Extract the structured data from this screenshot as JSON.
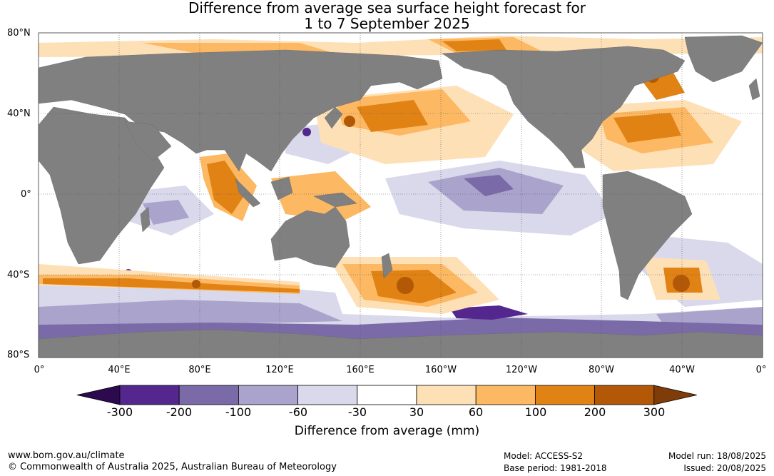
{
  "title": {
    "line1": "Difference from average sea surface height forecast for",
    "line2": "1 to 7 September 2025"
  },
  "map": {
    "lat_labels": [
      "80°N",
      "40°N",
      "0°",
      "40°S",
      "80°S"
    ],
    "lon_labels": [
      "0°",
      "40°E",
      "80°E",
      "120°E",
      "160°E",
      "160°W",
      "120°W",
      "80°W",
      "40°W",
      "0°"
    ],
    "land_color": "#808080",
    "ocean_color": "#ffffff"
  },
  "colorbar": {
    "title": "Difference from average (mm)",
    "ticks": [
      "-300",
      "-200",
      "-100",
      "-60",
      "-30",
      "30",
      "60",
      "100",
      "200",
      "300"
    ],
    "colors": [
      "#2d0a4e",
      "#54278f",
      "#7b6aa8",
      "#aaa3cc",
      "#d9d9eb",
      "#ffffff",
      "#fee0b6",
      "#fdb863",
      "#e08214",
      "#b35806",
      "#7f3b08"
    ]
  },
  "footer": {
    "url": "www.bom.gov.au/climate",
    "copyright": "© Commonwealth of Australia 2025, Australian Bureau of Meteorology",
    "model": "Model: ACCESS-S2",
    "base_period": "Base period: 1981-2018",
    "model_run": "Model run: 18/08/2025",
    "issued": "Issued: 20/08/2025"
  }
}
